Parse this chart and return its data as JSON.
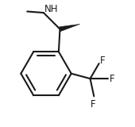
{
  "bg_color": "#ffffff",
  "line_color": "#1a1a1a",
  "line_width": 1.5,
  "font_size_label": 8.5,
  "NH_label": "NH",
  "F_labels": [
    "F",
    "F",
    "F"
  ],
  "figsize": [
    1.7,
    1.6
  ],
  "dpi": 100,
  "xlim": [
    0.0,
    1.0
  ],
  "ylim": [
    0.0,
    1.0
  ]
}
